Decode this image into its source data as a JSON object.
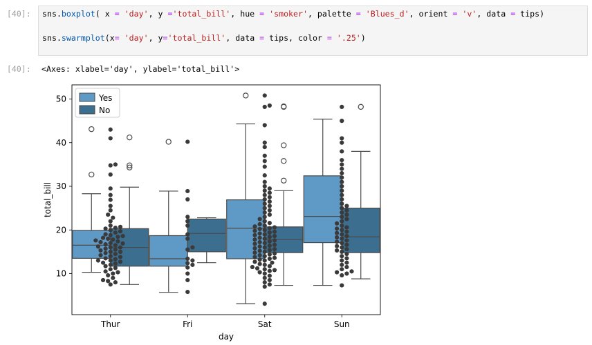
{
  "cell_in": {
    "prompt": "[40]:",
    "line1": [
      {
        "t": "sns.",
        "c": ""
      },
      {
        "t": "boxplot",
        "c": "kw-attr"
      },
      {
        "t": "( x ",
        "c": ""
      },
      {
        "t": "=",
        "c": "op"
      },
      {
        "t": " ",
        "c": ""
      },
      {
        "t": "'day'",
        "c": "str"
      },
      {
        "t": ", y ",
        "c": ""
      },
      {
        "t": "=",
        "c": "op"
      },
      {
        "t": "'total_bill'",
        "c": "str"
      },
      {
        "t": ", hue ",
        "c": ""
      },
      {
        "t": "=",
        "c": "op"
      },
      {
        "t": " ",
        "c": ""
      },
      {
        "t": "'smoker'",
        "c": "str"
      },
      {
        "t": ", palette ",
        "c": ""
      },
      {
        "t": "=",
        "c": "op"
      },
      {
        "t": " ",
        "c": ""
      },
      {
        "t": "'Blues_d'",
        "c": "str"
      },
      {
        "t": ", orient ",
        "c": ""
      },
      {
        "t": "=",
        "c": "op"
      },
      {
        "t": " ",
        "c": ""
      },
      {
        "t": "'v'",
        "c": "str"
      },
      {
        "t": ", data ",
        "c": ""
      },
      {
        "t": "=",
        "c": "op"
      },
      {
        "t": " tips)",
        "c": ""
      }
    ],
    "line2": [
      {
        "t": "sns.",
        "c": ""
      },
      {
        "t": "swarmplot",
        "c": "kw-attr"
      },
      {
        "t": "(x",
        "c": ""
      },
      {
        "t": "=",
        "c": "op"
      },
      {
        "t": " ",
        "c": ""
      },
      {
        "t": "'day'",
        "c": "str"
      },
      {
        "t": ", y",
        "c": ""
      },
      {
        "t": "=",
        "c": "op"
      },
      {
        "t": "'total_bill'",
        "c": "str"
      },
      {
        "t": ", data ",
        "c": ""
      },
      {
        "t": "=",
        "c": "op"
      },
      {
        "t": " tips, color ",
        "c": ""
      },
      {
        "t": "=",
        "c": "op"
      },
      {
        "t": " ",
        "c": ""
      },
      {
        "t": "'.25'",
        "c": "str"
      },
      {
        "t": ")",
        "c": ""
      }
    ]
  },
  "cell_out": {
    "prompt": "[40]:",
    "text": "<Axes: xlabel='day', ylabel='total_bill'>"
  },
  "colors": {
    "yes": "#5f9ac6",
    "no": "#3b6e8f",
    "points": "#3a3a3a",
    "whisker": "#4a4a4a"
  },
  "chart_data": {
    "type": "box",
    "xlabel": "day",
    "ylabel": "total_bill",
    "categories": [
      "Thur",
      "Fri",
      "Sat",
      "Sun"
    ],
    "ylim": [
      0,
      53
    ],
    "yticks": [
      10,
      20,
      30,
      40,
      50
    ],
    "legend": {
      "placement": "top-left",
      "entries": [
        {
          "name": "Yes",
          "color": "#5f9ac6"
        },
        {
          "name": "No",
          "color": "#3b6e8f"
        }
      ]
    },
    "series": [
      {
        "name": "Yes",
        "boxes": [
          {
            "q1": 13.5,
            "median": 16.5,
            "q3": 19.9,
            "low": 10.3,
            "high": 28.3,
            "outliers": [
              32.7,
              43.1
            ]
          },
          {
            "q1": 11.7,
            "median": 13.4,
            "q3": 18.7,
            "low": 5.7,
            "high": 28.9,
            "outliers": [
              40.2
            ]
          },
          {
            "q1": 13.4,
            "median": 20.4,
            "q3": 26.9,
            "low": 3.1,
            "high": 44.3,
            "outliers": [
              50.8
            ]
          },
          {
            "q1": 17.1,
            "median": 23.1,
            "q3": 32.4,
            "low": 7.3,
            "high": 45.4,
            "outliers": []
          }
        ]
      },
      {
        "name": "No",
        "boxes": [
          {
            "q1": 11.7,
            "median": 16.0,
            "q3": 20.3,
            "low": 7.5,
            "high": 29.8,
            "outliers": [
              34.3,
              34.8,
              41.2
            ]
          },
          {
            "q1": 15.0,
            "median": 19.2,
            "q3": 22.5,
            "low": 12.5,
            "high": 22.8,
            "outliers": []
          },
          {
            "q1": 14.8,
            "median": 17.8,
            "q3": 20.7,
            "low": 7.3,
            "high": 29.0,
            "outliers": [
              31.3,
              35.8,
              39.4,
              48.2,
              48.3
            ]
          },
          {
            "q1": 14.8,
            "median": 18.4,
            "q3": 25.0,
            "low": 8.8,
            "high": 38.0,
            "outliers": [
              48.2
            ]
          }
        ]
      }
    ],
    "swarm": [
      [
        7.5,
        8,
        8.3,
        8.5,
        9,
        9.6,
        10,
        10.3,
        10.5,
        11,
        11.3,
        11.7,
        12,
        12.3,
        12.5,
        12.7,
        13,
        13,
        13.3,
        13.5,
        13.8,
        14,
        14.2,
        14.5,
        14.7,
        15,
        15,
        15.3,
        15.5,
        15.7,
        16,
        16,
        16.2,
        16.5,
        16.7,
        16.9,
        17,
        17.2,
        17.4,
        17.6,
        17.8,
        18,
        18.2,
        18.4,
        18.6,
        18.8,
        19,
        19.4,
        19.7,
        20,
        20.3,
        20.5,
        20.7,
        21,
        22,
        22.8,
        23.5,
        24.5,
        25.5,
        26.9,
        28,
        29.5,
        32.7,
        34.8,
        35,
        41,
        43
      ],
      [
        5.8,
        8.5,
        10,
        11.4,
        12,
        12.4,
        13,
        13.4,
        15.5,
        16,
        18,
        19,
        21,
        22,
        23,
        27,
        28.9,
        40.2
      ],
      [
        3.1,
        7,
        7.5,
        8,
        8.5,
        9,
        9.5,
        10,
        10.3,
        10.6,
        10.8,
        11,
        11.2,
        11.5,
        11.7,
        12,
        12.2,
        12.5,
        12.7,
        13,
        13.2,
        13.4,
        13.6,
        13.8,
        14,
        14.2,
        14.4,
        14.6,
        14.8,
        15,
        15.2,
        15.4,
        15.6,
        15.8,
        16,
        16.2,
        16.4,
        16.6,
        16.8,
        17,
        17.2,
        17.4,
        17.6,
        17.8,
        18,
        18.2,
        18.4,
        18.6,
        18.8,
        19,
        19.2,
        19.4,
        19.6,
        19.8,
        20,
        20.2,
        20.4,
        20.6,
        20.8,
        21,
        21.3,
        21.6,
        22,
        22.5,
        23,
        23.5,
        24,
        24.5,
        25,
        25.5,
        26,
        26.5,
        27,
        27.5,
        28,
        28.5,
        29,
        29.5,
        30,
        31,
        32.5,
        34.5,
        35.8,
        37,
        39,
        40,
        44,
        48.2,
        48.5,
        50.8
      ],
      [
        7.3,
        9.6,
        10,
        10.3,
        10.5,
        11,
        11.5,
        12,
        12.5,
        13,
        13.5,
        14,
        14.5,
        15,
        15.3,
        15.6,
        16,
        16.3,
        16.6,
        17,
        17.3,
        17.6,
        18,
        18.3,
        18.6,
        19,
        19.3,
        19.6,
        20,
        20.3,
        20.6,
        21,
        21.5,
        22,
        22.5,
        23,
        23.5,
        24,
        24.5,
        25,
        25.5,
        26,
        27,
        28,
        29,
        30,
        31,
        32,
        33,
        34,
        35,
        36,
        38,
        40,
        41,
        45,
        48.2
      ]
    ]
  }
}
